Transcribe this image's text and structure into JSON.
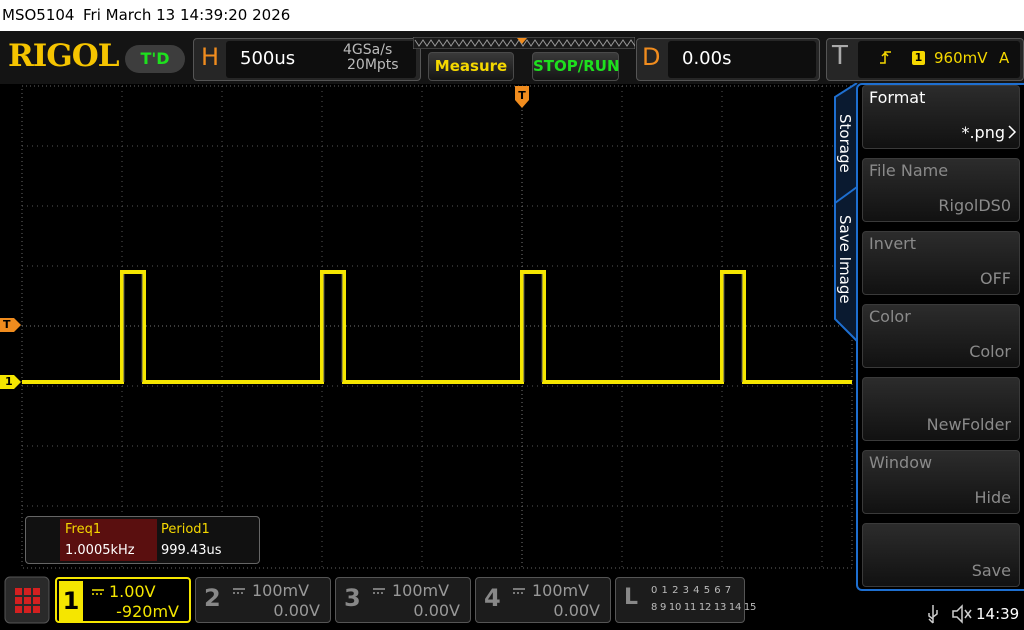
{
  "status_bar": {
    "model": "MSO5104",
    "datetime": "Fri March 13 14:39:20 2026"
  },
  "toolbar": {
    "logo": "RIGOL",
    "run_state": "T'D",
    "horizontal": {
      "label": "H",
      "timebase": "500us",
      "sample_rate": "4GSa/s",
      "memory_depth": "20Mpts"
    },
    "measure_button": "Measure",
    "stop_run_button": "STOP/RUN",
    "delay": {
      "label": "D",
      "value": "0.00s"
    },
    "trigger": {
      "label": "T",
      "source": "1",
      "level": "960mV",
      "mode": "A"
    }
  },
  "waveform": {
    "trigger_marker": "T",
    "level_marker": "T",
    "channel_marker": "1"
  },
  "side_menu": {
    "tabs": [
      "Storage",
      "Save Image"
    ],
    "items": [
      {
        "label": "Format",
        "value": "*.png"
      },
      {
        "label": "File Name",
        "value": "RigolDS0"
      },
      {
        "label": "Invert",
        "value": "OFF"
      },
      {
        "label": "Color",
        "value": "Color"
      },
      {
        "value": "NewFolder"
      },
      {
        "label": "Window",
        "value": "Hide"
      },
      {
        "value": "Save"
      }
    ]
  },
  "measurements": [
    {
      "name": "Freq1",
      "value": "1.0005kHz"
    },
    {
      "name": "Period1",
      "value": "999.43us"
    }
  ],
  "channels": [
    {
      "number": "1",
      "scale": "1.00V",
      "offset": "-920mV"
    },
    {
      "number": "2",
      "scale": "100mV",
      "offset": "0.00V"
    },
    {
      "number": "3",
      "scale": "100mV",
      "offset": "0.00V"
    },
    {
      "number": "4",
      "scale": "100mV",
      "offset": "0.00V"
    }
  ],
  "logic": {
    "label": "L",
    "row1": "0 1 2 3  4 5 6 7",
    "row2": "8 9 10 11 12 13 14 15"
  },
  "system": {
    "time": "14:39"
  }
}
